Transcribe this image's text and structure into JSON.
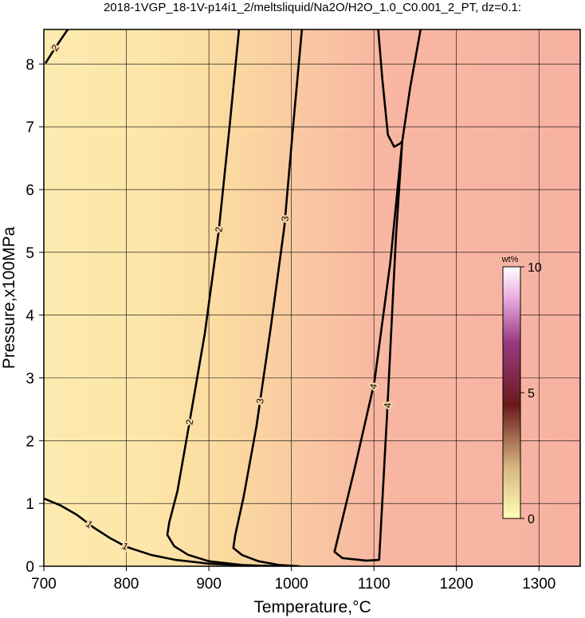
{
  "chart_data": {
    "type": "contour",
    "title": "2018-1VGP_18-1V-p14i1_2/meltsliquid/Na2O/H2O_1.0_C0.001_2_PT, dz=0.1:",
    "x_label": "Temperature,°C",
    "y_label": "Pressure,x100MPa",
    "xlim": [
      700,
      1350
    ],
    "ylim": [
      0,
      8.55
    ],
    "xticks": [
      700,
      800,
      900,
      1000,
      1100,
      1200,
      1300
    ],
    "yticks": [
      0,
      1,
      2,
      3,
      4,
      5,
      6,
      7,
      8
    ],
    "grid": true,
    "contours": [
      {
        "label": "2",
        "x": [
          701.9,
          714.4,
          729
        ],
        "y": [
          8.01,
          8.27,
          8.55
        ]
      },
      {
        "label": "1",
        "x": [
          700,
          720,
          740,
          760,
          780,
          800,
          830,
          860,
          900,
          950,
          1000
        ],
        "y": [
          1.08,
          0.97,
          0.82,
          0.62,
          0.45,
          0.31,
          0.18,
          0.1,
          0.04,
          0.01,
          0
        ]
      },
      {
        "label": "2",
        "x": [
          936.5,
          925,
          912,
          895,
          875.7,
          862,
          852,
          849.6,
          858,
          875,
          900,
          940,
          980
        ],
        "y": [
          8.55,
          7,
          5.35,
          3.7,
          2.23,
          1.2,
          0.7,
          0.5,
          0.32,
          0.18,
          0.08,
          0.02,
          0
        ]
      },
      {
        "label": "3",
        "x": [
          1012.7,
          1002,
          991.5,
          975,
          957.7,
          942,
          932,
          929.7,
          940,
          960,
          985,
          1010
        ],
        "y": [
          8.55,
          7,
          5.41,
          3.8,
          2.23,
          1.1,
          0.5,
          0.29,
          0.18,
          0.08,
          0.02,
          0
        ]
      },
      {
        "label": "4",
        "x": [
          1105.3,
          1110.2,
          1116.9,
          1124.6,
          1132.3,
          1134.3,
          1126.6,
          1116,
          1106.3,
          1090.9,
          1061.9,
          1052.2,
          1076.4,
          1100.5,
          1119.8,
          1134.3,
          1144,
          1156.5
        ],
        "y": [
          8.55,
          7.76,
          6.87,
          6.68,
          6.74,
          6.77,
          5.22,
          2.43,
          0.1,
          0.09,
          0.13,
          0.23,
          1.54,
          2.93,
          4.84,
          6.77,
          7.63,
          8.55
        ]
      }
    ],
    "colorbar": {
      "label": "wt%",
      "lim": [
        0,
        10
      ],
      "ticks": [
        0,
        5,
        10
      ]
    }
  }
}
